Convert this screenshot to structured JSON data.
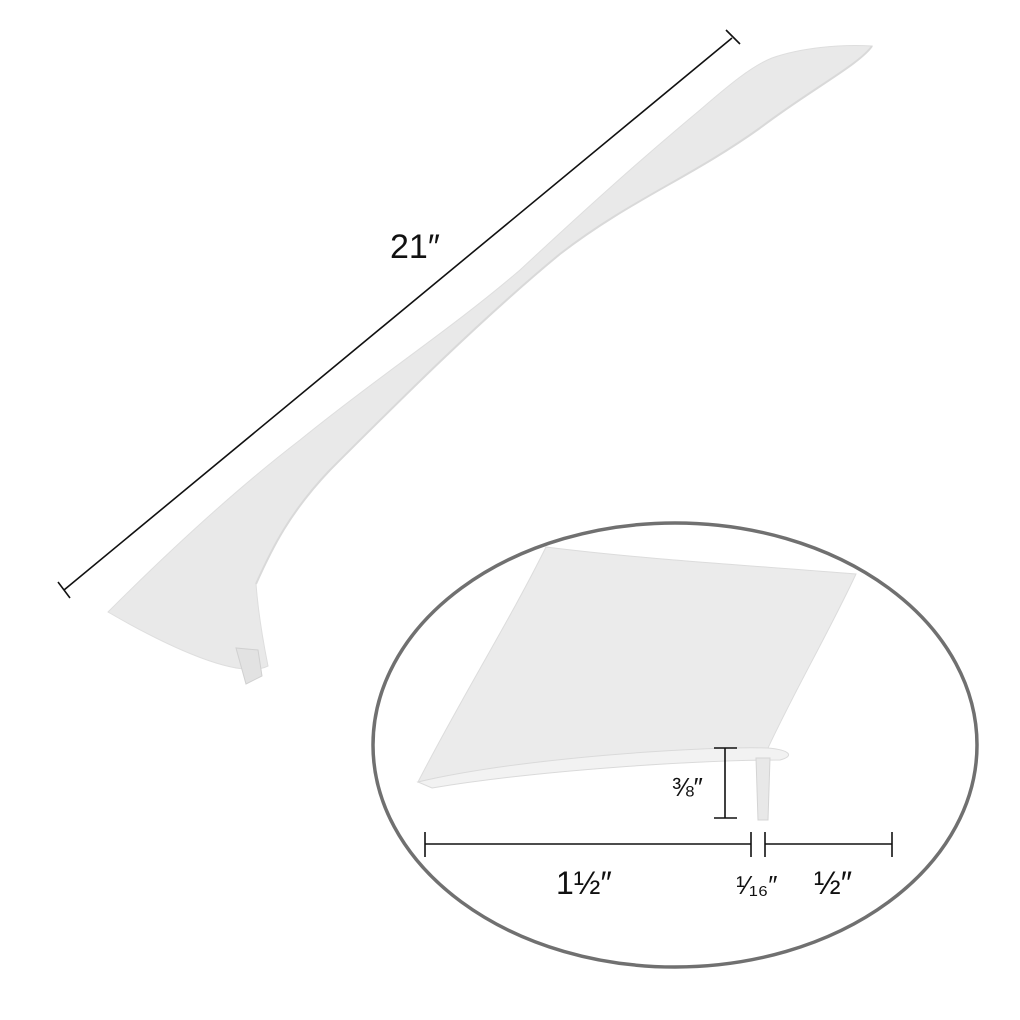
{
  "colors": {
    "background": "#ffffff",
    "product_fill": "#e9e9e9",
    "product_edge": "#d6d6d6",
    "dimension_line": "#111111",
    "callout_border": "#707070"
  },
  "product": {
    "length_label": "21″"
  },
  "detail_callout": {
    "width_label": "1½″",
    "height_label": "⅜″",
    "thickness_label": "¹⁄₁₆″",
    "flap_label": "½″"
  }
}
